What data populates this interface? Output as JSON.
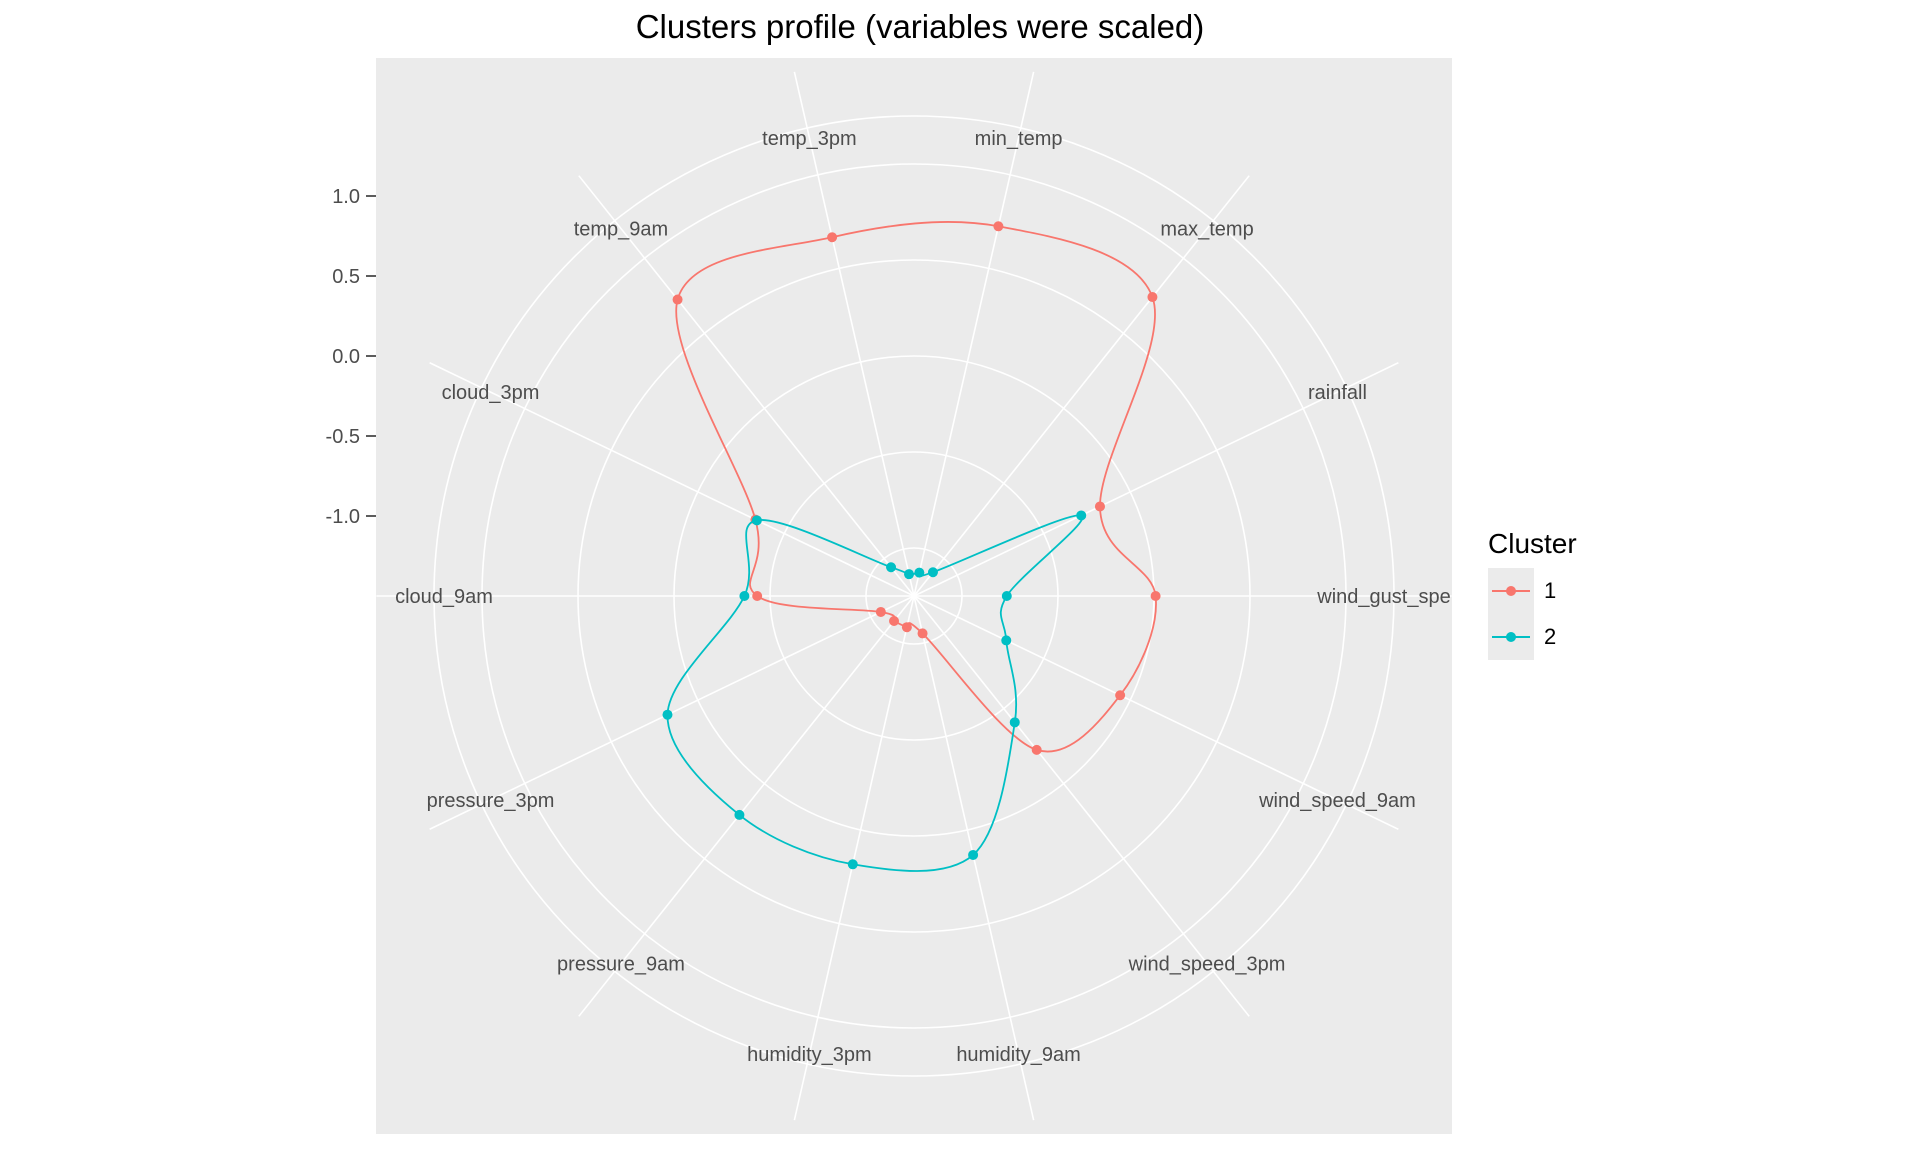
{
  "chart_data": {
    "type": "radar",
    "title": "Clusters profile (variables were scaled)",
    "radial_ticks": [
      "1.0",
      "0.5",
      "0.0",
      "-0.5",
      "-1.0"
    ],
    "radial_tick_values": [
      1.0,
      0.5,
      0.0,
      -0.5,
      -1.0
    ],
    "rlim": [
      -1.5,
      1.5
    ],
    "categories": [
      "min_temp",
      "max_temp",
      "rainfall",
      "wind_gust_spe",
      "wind_speed_9am",
      "wind_speed_3pm",
      "humidity_9am",
      "humidity_3pm",
      "pressure_9am",
      "pressure_3pm",
      "cloud_9am",
      "cloud_3pm",
      "temp_9am",
      "temp_3pm"
    ],
    "legend": {
      "title": "Cluster",
      "position": "right"
    },
    "grid": true,
    "series": [
      {
        "name": "1",
        "color": "#F8766D",
        "values": [
          0.87,
          0.89,
          -0.21,
          0.01,
          -0.07,
          -0.27,
          -1.26,
          -1.3,
          -1.3,
          -1.27,
          -0.52,
          -0.4,
          0.87,
          0.8
        ]
      },
      {
        "name": "2",
        "color": "#00BFC4",
        "values": [
          -1.35,
          -1.31,
          -0.34,
          -0.92,
          -0.86,
          -0.49,
          0.16,
          0.22,
          0.25,
          0.21,
          -0.44,
          -0.41,
          -1.27,
          -1.36
        ]
      }
    ]
  }
}
